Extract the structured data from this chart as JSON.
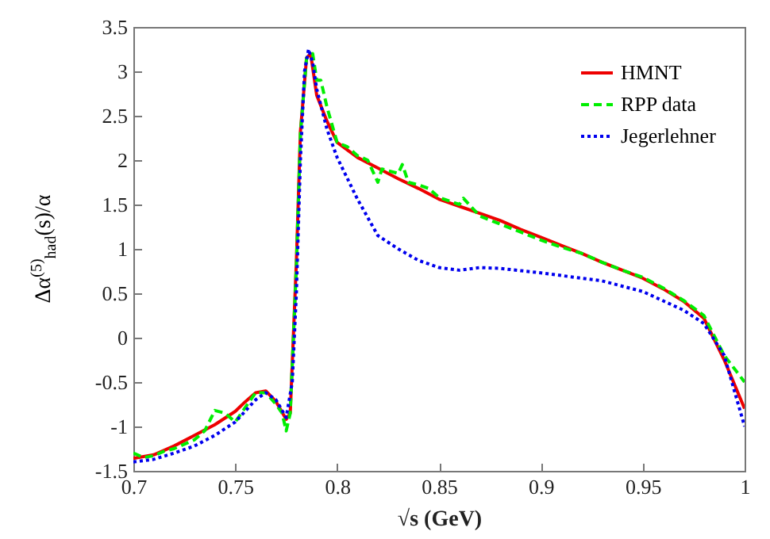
{
  "chart_data": {
    "type": "line",
    "xlabel": "√s (GeV)",
    "ylabel": "Δα$^{(5)}$$_{had}$(s)/α",
    "xlim": [
      0.7,
      1
    ],
    "ylim": [
      -1.5,
      3.5
    ],
    "xticks": [
      0.7,
      0.75,
      0.8,
      0.85,
      0.9,
      0.95,
      1
    ],
    "yticks": [
      -1.5,
      -1,
      -0.5,
      0,
      0.5,
      1,
      1.5,
      2,
      2.5,
      3,
      3.5
    ],
    "grid": false,
    "legend": "top right",
    "marker": "none",
    "series": [
      {
        "name": "HMNT",
        "color": "#ee0000",
        "line_style": "solid",
        "x": [
          0.7,
          0.71,
          0.72,
          0.73,
          0.74,
          0.75,
          0.755,
          0.76,
          0.765,
          0.77,
          0.775,
          0.777,
          0.78,
          0.782,
          0.785,
          0.787,
          0.79,
          0.795,
          0.8,
          0.81,
          0.82,
          0.83,
          0.84,
          0.85,
          0.86,
          0.87,
          0.88,
          0.89,
          0.9,
          0.91,
          0.92,
          0.93,
          0.94,
          0.95,
          0.96,
          0.97,
          0.98,
          0.99,
          1
        ],
        "values": [
          -1.36,
          -1.32,
          -1.22,
          -1.1,
          -0.98,
          -0.83,
          -0.72,
          -0.62,
          -0.6,
          -0.72,
          -0.92,
          -0.85,
          0.85,
          2.32,
          3.15,
          3.2,
          2.73,
          2.44,
          2.2,
          2.03,
          1.91,
          1.79,
          1.68,
          1.56,
          1.48,
          1.4,
          1.32,
          1.22,
          1.13,
          1.04,
          0.95,
          0.85,
          0.76,
          0.67,
          0.55,
          0.41,
          0.22,
          -0.25,
          -0.8
        ]
      },
      {
        "name": "RPP data",
        "color": "#00ee00",
        "line_style": "dashed",
        "x": [
          0.7,
          0.705,
          0.71,
          0.715,
          0.72,
          0.73,
          0.735,
          0.74,
          0.745,
          0.75,
          0.753,
          0.76,
          0.765,
          0.77,
          0.773,
          0.775,
          0.777,
          0.78,
          0.782,
          0.785,
          0.788,
          0.79,
          0.792,
          0.795,
          0.8,
          0.805,
          0.81,
          0.815,
          0.82,
          0.822,
          0.83,
          0.832,
          0.835,
          0.84,
          0.845,
          0.85,
          0.86,
          0.862,
          0.87,
          0.88,
          0.89,
          0.9,
          0.91,
          0.92,
          0.93,
          0.94,
          0.95,
          0.96,
          0.97,
          0.98,
          0.99,
          1
        ],
        "values": [
          -1.3,
          -1.35,
          -1.33,
          -1.28,
          -1.25,
          -1.15,
          -1.05,
          -0.82,
          -0.85,
          -0.95,
          -0.85,
          -0.62,
          -0.62,
          -0.75,
          -0.85,
          -1.05,
          -0.85,
          0.8,
          2.3,
          3.15,
          3.2,
          2.9,
          2.9,
          2.6,
          2.2,
          2.15,
          2.05,
          2.0,
          1.75,
          1.9,
          1.85,
          1.95,
          1.75,
          1.72,
          1.68,
          1.58,
          1.5,
          1.57,
          1.37,
          1.28,
          1.19,
          1.1,
          1.02,
          0.95,
          0.85,
          0.76,
          0.68,
          0.56,
          0.42,
          0.25,
          -0.2,
          -0.5
        ]
      },
      {
        "name": "Jegerlehner",
        "color": "#0000ee",
        "line_style": "dotted",
        "x": [
          0.7,
          0.71,
          0.72,
          0.73,
          0.74,
          0.75,
          0.76,
          0.765,
          0.77,
          0.775,
          0.778,
          0.78,
          0.782,
          0.784,
          0.786,
          0.788,
          0.79,
          0.795,
          0.8,
          0.81,
          0.82,
          0.83,
          0.84,
          0.85,
          0.86,
          0.87,
          0.88,
          0.9,
          0.93,
          0.95,
          0.97,
          0.98,
          0.99,
          1
        ],
        "values": [
          -1.4,
          -1.37,
          -1.3,
          -1.22,
          -1.1,
          -0.95,
          -0.7,
          -0.62,
          -0.7,
          -0.9,
          -0.5,
          0.5,
          2.0,
          3.0,
          3.25,
          3.1,
          2.8,
          2.35,
          2.03,
          1.56,
          1.15,
          1.0,
          0.87,
          0.79,
          0.76,
          0.79,
          0.78,
          0.73,
          0.64,
          0.52,
          0.31,
          0.16,
          -0.2,
          -1.0
        ]
      }
    ]
  }
}
